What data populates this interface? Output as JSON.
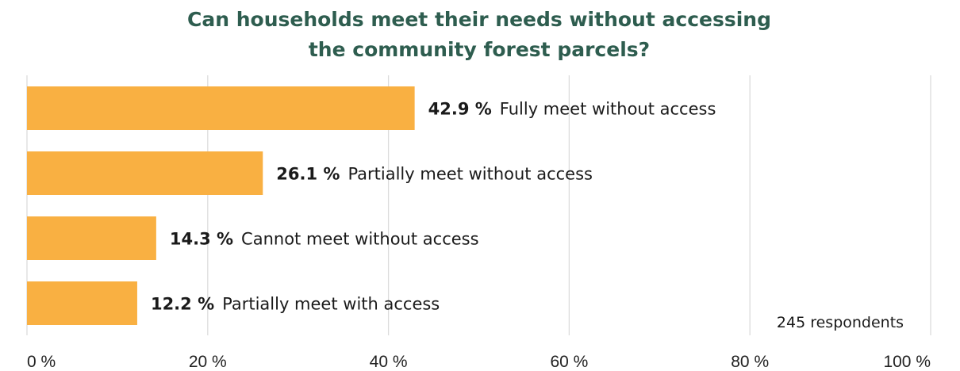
{
  "chart_data": {
    "type": "bar",
    "orientation": "horizontal",
    "title_lines": [
      "Can households meet their needs without accessing",
      "the community forest parcels?"
    ],
    "categories": [
      "Fully meet without access",
      "Partially meet without access",
      "Cannot meet without access",
      "Partially meet with access"
    ],
    "values": [
      42.9,
      26.1,
      14.3,
      12.2
    ],
    "value_labels": [
      "42.9 %",
      "26.1 %",
      "14.3 %",
      "12.2 %"
    ],
    "xlim": [
      0,
      100
    ],
    "x_ticks": [
      0,
      20,
      40,
      60,
      80,
      100
    ],
    "x_tick_labels": [
      "0 %",
      "20 %",
      "40 %",
      "60 %",
      "80 %",
      "100 %"
    ],
    "grid": true,
    "bar_color": "#f9b042",
    "title_color": "#2e5d4f",
    "annotation": "245 respondents"
  }
}
